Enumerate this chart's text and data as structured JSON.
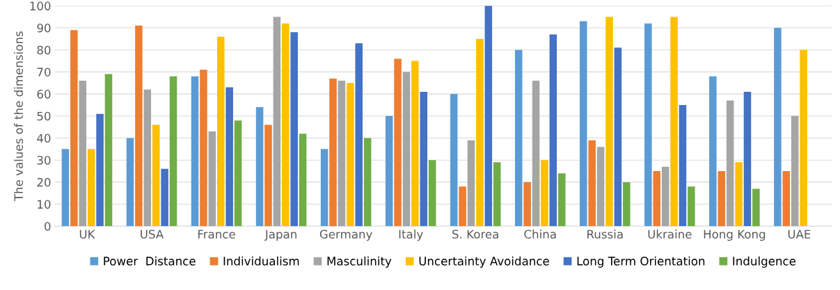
{
  "chart_data": {
    "type": "bar",
    "ylabel": "The values of the dimensions",
    "categories": [
      "UK",
      "USA",
      "France",
      "Japan",
      "Germany",
      "Italy",
      "S. Korea",
      "China",
      "Russia",
      "Ukraine",
      "Hong Kong",
      "UAE"
    ],
    "series": [
      {
        "name": "Power  Distance",
        "color": "#5b9bd5",
        "values": [
          35,
          40,
          68,
          54,
          35,
          50,
          60,
          80,
          93,
          92,
          68,
          90
        ]
      },
      {
        "name": "Individualism",
        "color": "#ed7d31",
        "values": [
          89,
          91,
          71,
          46,
          67,
          76,
          18,
          20,
          39,
          25,
          25,
          25
        ]
      },
      {
        "name": "Masculinity",
        "color": "#a5a5a5",
        "values": [
          66,
          62,
          43,
          95,
          66,
          70,
          39,
          66,
          36,
          27,
          57,
          50
        ]
      },
      {
        "name": "Uncertainty Avoidance",
        "color": "#ffc000",
        "values": [
          35,
          46,
          86,
          92,
          65,
          75,
          85,
          30,
          95,
          95,
          29,
          80
        ]
      },
      {
        "name": "Long Term Orientation",
        "color": "#4472c4",
        "values": [
          51,
          26,
          63,
          88,
          83,
          61,
          100,
          87,
          81,
          55,
          61,
          null
        ]
      },
      {
        "name": "Indulgence",
        "color": "#70ad47",
        "values": [
          69,
          68,
          48,
          42,
          40,
          30,
          29,
          24,
          20,
          18,
          17,
          null
        ]
      }
    ],
    "ylim": [
      0,
      100
    ],
    "yticks": [
      0,
      10,
      20,
      30,
      40,
      50,
      60,
      70,
      80,
      90,
      100
    ],
    "grid": "y",
    "legend": "bottom"
  }
}
